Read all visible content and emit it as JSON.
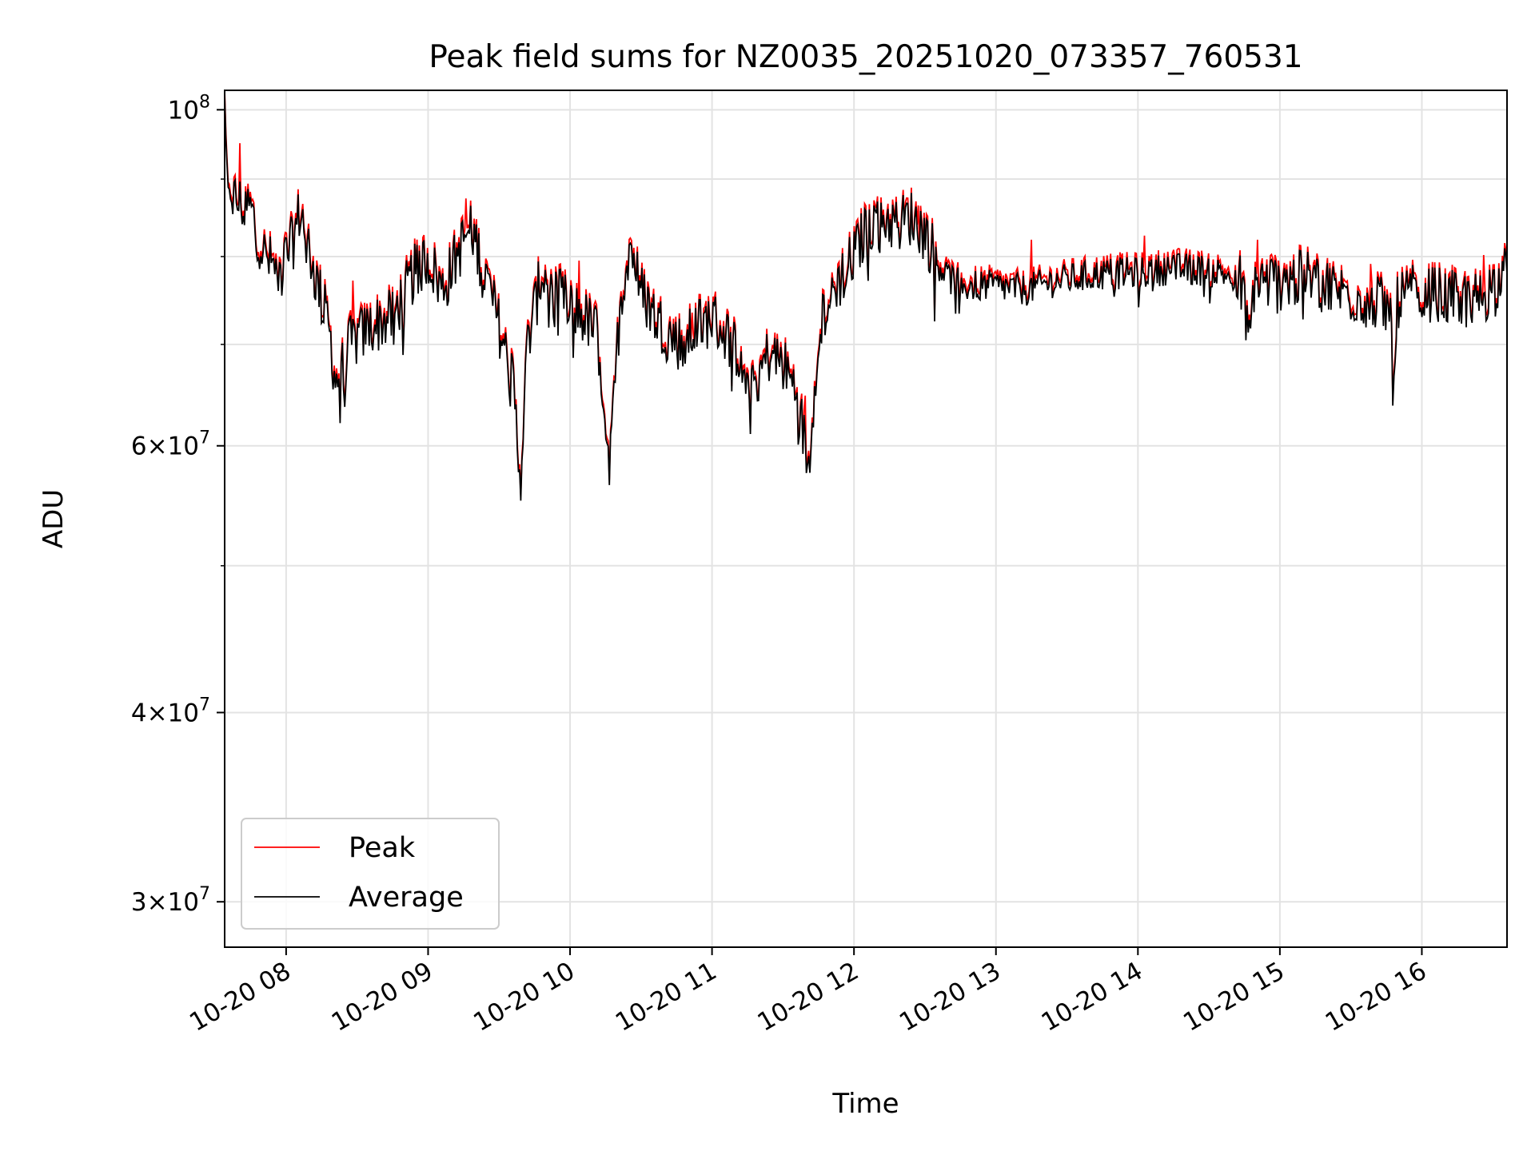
{
  "chart_data": {
    "type": "line",
    "title": "Peak field sums for NZ0035_20251020_073357_760531",
    "xlabel": "Time",
    "ylabel": "ADU",
    "yscale": "log",
    "ylim": [
      28000000,
      103000000
    ],
    "xlim_hours": [
      7.567,
      16.6
    ],
    "grid": true,
    "legend_location": "lower-left",
    "x_ticks": [
      {
        "value": 8,
        "label": "10-20 08"
      },
      {
        "value": 9,
        "label": "10-20 09"
      },
      {
        "value": 10,
        "label": "10-20 10"
      },
      {
        "value": 11,
        "label": "10-20 11"
      },
      {
        "value": 12,
        "label": "10-20 12"
      },
      {
        "value": 13,
        "label": "10-20 13"
      },
      {
        "value": 14,
        "label": "10-20 14"
      },
      {
        "value": 15,
        "label": "10-20 15"
      },
      {
        "value": 16,
        "label": "10-20 16"
      }
    ],
    "y_major_ticks": [
      {
        "value": 100000000,
        "base": "10",
        "exp": "8",
        "mant": ""
      },
      {
        "value": 60000000,
        "base": "10",
        "exp": "7",
        "mant": "6"
      },
      {
        "value": 40000000,
        "base": "10",
        "exp": "7",
        "mant": "4"
      },
      {
        "value": 30000000,
        "base": "10",
        "exp": "7",
        "mant": "3"
      }
    ],
    "y_minor_gridlines": [
      90000000,
      80000000,
      70000000,
      50000000
    ],
    "series": [
      {
        "name": "Peak",
        "color": "#ff0000",
        "offset_ratio": 1.008
      },
      {
        "name": "Average",
        "color": "#000000",
        "offset_ratio": 1.0
      }
    ],
    "average_keypoints": [
      [
        7.567,
        102000000
      ],
      [
        7.59,
        88000000
      ],
      [
        7.65,
        87000000
      ],
      [
        7.75,
        86000000
      ],
      [
        7.85,
        80000000
      ],
      [
        7.95,
        78000000
      ],
      [
        8.05,
        82000000
      ],
      [
        8.1,
        86000000
      ],
      [
        8.2,
        78000000
      ],
      [
        8.3,
        72000000
      ],
      [
        8.35,
        66000000
      ],
      [
        8.45,
        70000000
      ],
      [
        8.6,
        72000000
      ],
      [
        8.75,
        73000000
      ],
      [
        8.9,
        78000000
      ],
      [
        9.0,
        80000000
      ],
      [
        9.1,
        76000000
      ],
      [
        9.2,
        80000000
      ],
      [
        9.3,
        84000000
      ],
      [
        9.4,
        78000000
      ],
      [
        9.5,
        72000000
      ],
      [
        9.6,
        66000000
      ],
      [
        9.65,
        57000000
      ],
      [
        9.7,
        70000000
      ],
      [
        9.8,
        78000000
      ],
      [
        9.9,
        76000000
      ],
      [
        10.0,
        74000000
      ],
      [
        10.1,
        73000000
      ],
      [
        10.2,
        71000000
      ],
      [
        10.28,
        57500000
      ],
      [
        10.35,
        74000000
      ],
      [
        10.42,
        82000000
      ],
      [
        10.5,
        76000000
      ],
      [
        10.6,
        73000000
      ],
      [
        10.7,
        71000000
      ],
      [
        10.8,
        70000000
      ],
      [
        10.9,
        72000000
      ],
      [
        11.0,
        73000000
      ],
      [
        11.1,
        71000000
      ],
      [
        11.2,
        69000000
      ],
      [
        11.3,
        66000000
      ],
      [
        11.4,
        69000000
      ],
      [
        11.5,
        68000000
      ],
      [
        11.6,
        65000000
      ],
      [
        11.68,
        58000000
      ],
      [
        11.75,
        72000000
      ],
      [
        11.85,
        76000000
      ],
      [
        12.0,
        80000000
      ],
      [
        12.1,
        84000000
      ],
      [
        12.2,
        85000000
      ],
      [
        12.3,
        84000000
      ],
      [
        12.4,
        85000000
      ],
      [
        12.5,
        83000000
      ],
      [
        12.6,
        79000000
      ],
      [
        12.7,
        77000000
      ],
      [
        12.8,
        76500000
      ],
      [
        13.0,
        76500000
      ],
      [
        13.2,
        76000000
      ],
      [
        13.4,
        77000000
      ],
      [
        13.6,
        77500000
      ],
      [
        13.8,
        78000000
      ],
      [
        14.0,
        78000000
      ],
      [
        14.2,
        78500000
      ],
      [
        14.4,
        78500000
      ],
      [
        14.6,
        78000000
      ],
      [
        14.75,
        77000000
      ],
      [
        14.78,
        69500000
      ],
      [
        14.82,
        77000000
      ],
      [
        15.0,
        77000000
      ],
      [
        15.2,
        77500000
      ],
      [
        15.4,
        76000000
      ],
      [
        15.6,
        75000000
      ],
      [
        15.78,
        74000000
      ],
      [
        15.8,
        64000000
      ],
      [
        15.83,
        75000000
      ],
      [
        16.0,
        76000000
      ],
      [
        16.2,
        75000000
      ],
      [
        16.4,
        75000000
      ],
      [
        16.6,
        78000000
      ]
    ],
    "noise_level": 0.045
  }
}
